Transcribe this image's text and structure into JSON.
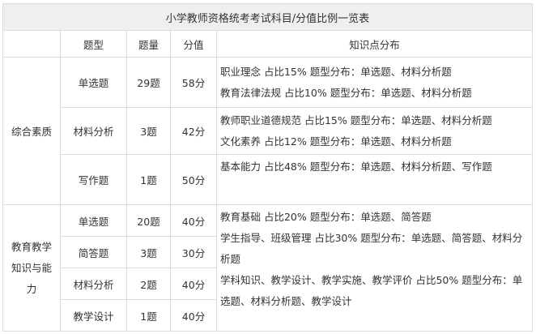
{
  "title": "小学教师资格统考考试科目/分值比例一览表",
  "headers": [
    "",
    "题型",
    "题量",
    "分值",
    "知识点分布"
  ],
  "sections": [
    {
      "subject": "综合素质",
      "rows": [
        {
          "type": "单选题",
          "count": "29题",
          "score": "58分",
          "knowledge": [
            "职业理念 占比15% 题型分布：单选题、材料分析题",
            "教育法律法规 占比10% 题型分布：单选题、材料分析题"
          ]
        },
        {
          "type": "材料分析",
          "count": "3题",
          "score": "42分",
          "knowledge": [
            "教师职业道德规范 占比15% 题型分布：单选题、材料分析题",
            "文化素养 占比12% 题型分布：单选题、材料分析题"
          ]
        },
        {
          "type": "写作题",
          "count": "1题",
          "score": "50分",
          "knowledge": [
            "基本能力 占比48% 题型分布：单选题、材料分析题、写作题"
          ]
        }
      ]
    },
    {
      "subject": "教育教学知识与能力",
      "rows": [
        {
          "type": "单选题",
          "count": "20题",
          "score": "40分"
        },
        {
          "type": "简答题",
          "count": "3题",
          "score": "30分"
        },
        {
          "type": "材料分析",
          "count": "2题",
          "score": "40分"
        },
        {
          "type": "教学设计",
          "count": "1题",
          "score": "40分"
        }
      ],
      "knowledge": [
        "教育基础 占比20% 题型分布：单选题、简答题",
        "学生指导、班级管理 占比30% 题型分布：单选题、简答题、材料分析题",
        "学科知识、教学设计、教学实施、教学评价 占比50% 题型分布：单选题、材料分析题、教学设计"
      ]
    }
  ]
}
